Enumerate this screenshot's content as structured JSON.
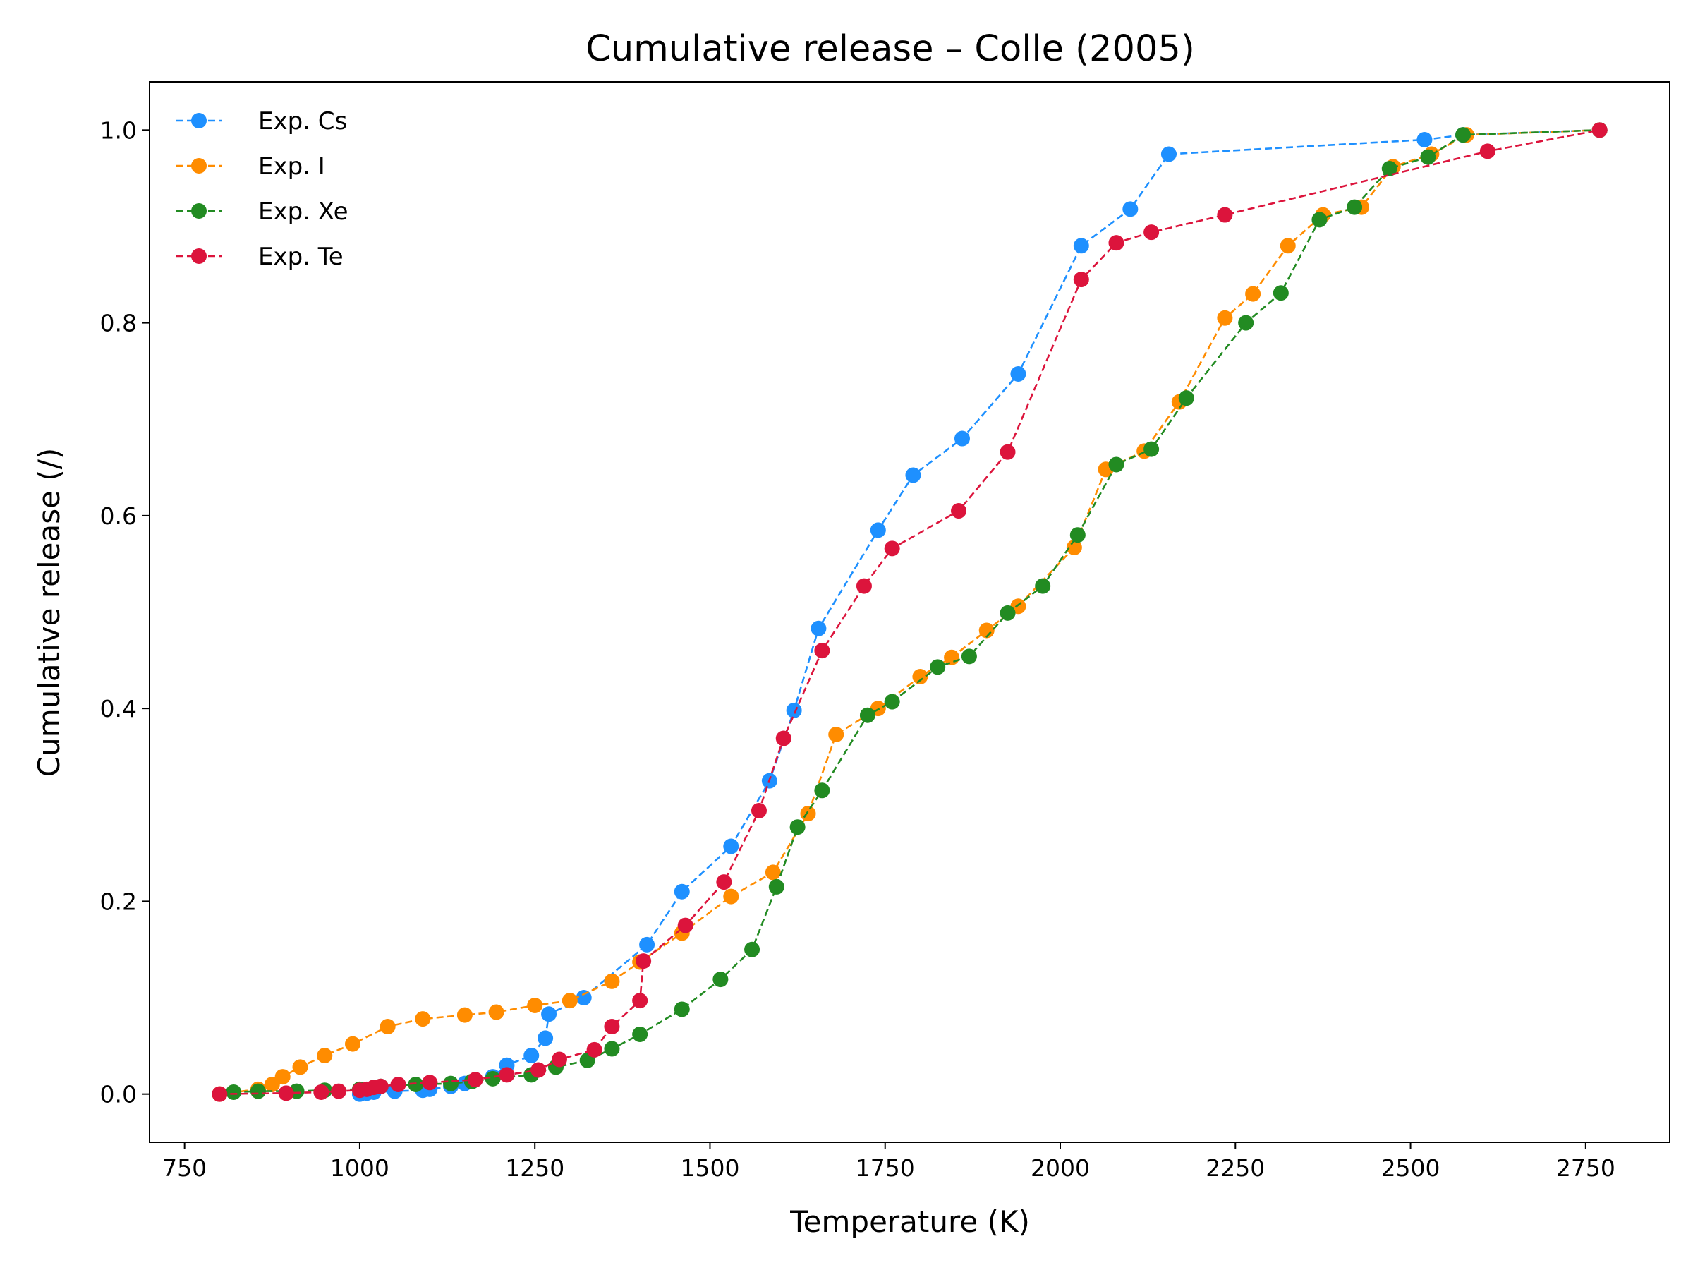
{
  "chart_data": {
    "type": "line",
    "title": "Cumulative release – Colle (2005)",
    "xlabel": "Temperature (K)",
    "ylabel": "Cumulative release (/)",
    "xlim": [
      700,
      2870
    ],
    "ylim": [
      -0.05,
      1.05
    ],
    "xticks": [
      750,
      1000,
      1250,
      1500,
      1750,
      2000,
      2250,
      2500,
      2750
    ],
    "yticks": [
      0.0,
      0.2,
      0.4,
      0.6,
      0.8,
      1.0
    ],
    "xtick_labels": [
      "750",
      "1000",
      "1250",
      "1500",
      "1750",
      "2000",
      "2250",
      "2500",
      "2750"
    ],
    "ytick_labels": [
      "0.0",
      "0.2",
      "0.4",
      "0.6",
      "0.8",
      "1.0"
    ],
    "grid": false,
    "legend_position": "top-left",
    "line_style": "dashed",
    "marker": "circle",
    "series": [
      {
        "name": "Exp. Cs",
        "color": "#1e90ff",
        "x": [
          1000,
          1010,
          1020,
          1050,
          1090,
          1100,
          1130,
          1150,
          1190,
          1210,
          1245,
          1265,
          1270,
          1320,
          1410,
          1460,
          1530,
          1585,
          1620,
          1655,
          1740,
          1790,
          1860,
          1940,
          2030,
          2100,
          2155,
          2520,
          2575,
          2770
        ],
        "y": [
          0.0,
          0.001,
          0.002,
          0.003,
          0.004,
          0.005,
          0.008,
          0.011,
          0.018,
          0.03,
          0.04,
          0.058,
          0.083,
          0.1,
          0.155,
          0.21,
          0.257,
          0.325,
          0.398,
          0.483,
          0.585,
          0.642,
          0.68,
          0.747,
          0.88,
          0.918,
          0.975,
          0.99,
          0.995,
          1.0
        ]
      },
      {
        "name": "Exp. I",
        "color": "#ff8c00",
        "x": [
          800,
          855,
          875,
          890,
          915,
          950,
          990,
          1040,
          1090,
          1150,
          1195,
          1250,
          1300,
          1360,
          1400,
          1460,
          1530,
          1590,
          1640,
          1680,
          1740,
          1800,
          1845,
          1895,
          1940,
          2020,
          2065,
          2120,
          2170,
          2235,
          2275,
          2325,
          2375,
          2430,
          2475,
          2530,
          2580,
          2770
        ],
        "y": [
          0.0,
          0.005,
          0.01,
          0.018,
          0.028,
          0.04,
          0.052,
          0.07,
          0.078,
          0.082,
          0.085,
          0.092,
          0.097,
          0.117,
          0.137,
          0.167,
          0.205,
          0.23,
          0.291,
          0.373,
          0.4,
          0.433,
          0.453,
          0.481,
          0.506,
          0.567,
          0.648,
          0.667,
          0.718,
          0.805,
          0.83,
          0.88,
          0.912,
          0.92,
          0.962,
          0.975,
          0.995,
          1.0
        ]
      },
      {
        "name": "Exp. Xe",
        "color": "#228b22",
        "x": [
          820,
          855,
          910,
          950,
          1000,
          1030,
          1080,
          1130,
          1160,
          1190,
          1245,
          1280,
          1325,
          1360,
          1400,
          1460,
          1515,
          1560,
          1595,
          1625,
          1660,
          1725,
          1760,
          1825,
          1870,
          1925,
          1975,
          2025,
          2080,
          2130,
          2180,
          2265,
          2315,
          2370,
          2420,
          2470,
          2525,
          2575,
          2770
        ],
        "y": [
          0.002,
          0.003,
          0.003,
          0.004,
          0.005,
          0.008,
          0.01,
          0.011,
          0.013,
          0.016,
          0.02,
          0.028,
          0.035,
          0.047,
          0.062,
          0.088,
          0.119,
          0.15,
          0.215,
          0.277,
          0.315,
          0.393,
          0.407,
          0.443,
          0.454,
          0.499,
          0.527,
          0.58,
          0.653,
          0.669,
          0.722,
          0.8,
          0.831,
          0.907,
          0.92,
          0.96,
          0.972,
          0.995,
          1.0
        ]
      },
      {
        "name": "Exp. Te",
        "color": "#dc143c",
        "x": [
          800,
          895,
          945,
          970,
          1000,
          1010,
          1020,
          1030,
          1055,
          1100,
          1165,
          1210,
          1255,
          1285,
          1335,
          1360,
          1400,
          1405,
          1465,
          1520,
          1570,
          1605,
          1660,
          1720,
          1760,
          1855,
          1925,
          2030,
          2080,
          2130,
          2235,
          2610,
          2770
        ],
        "y": [
          0.0,
          0.001,
          0.002,
          0.003,
          0.004,
          0.005,
          0.007,
          0.008,
          0.01,
          0.012,
          0.015,
          0.02,
          0.025,
          0.036,
          0.046,
          0.07,
          0.097,
          0.138,
          0.175,
          0.22,
          0.294,
          0.369,
          0.46,
          0.527,
          0.566,
          0.605,
          0.666,
          0.845,
          0.883,
          0.894,
          0.912,
          0.978,
          1.0
        ]
      }
    ]
  }
}
